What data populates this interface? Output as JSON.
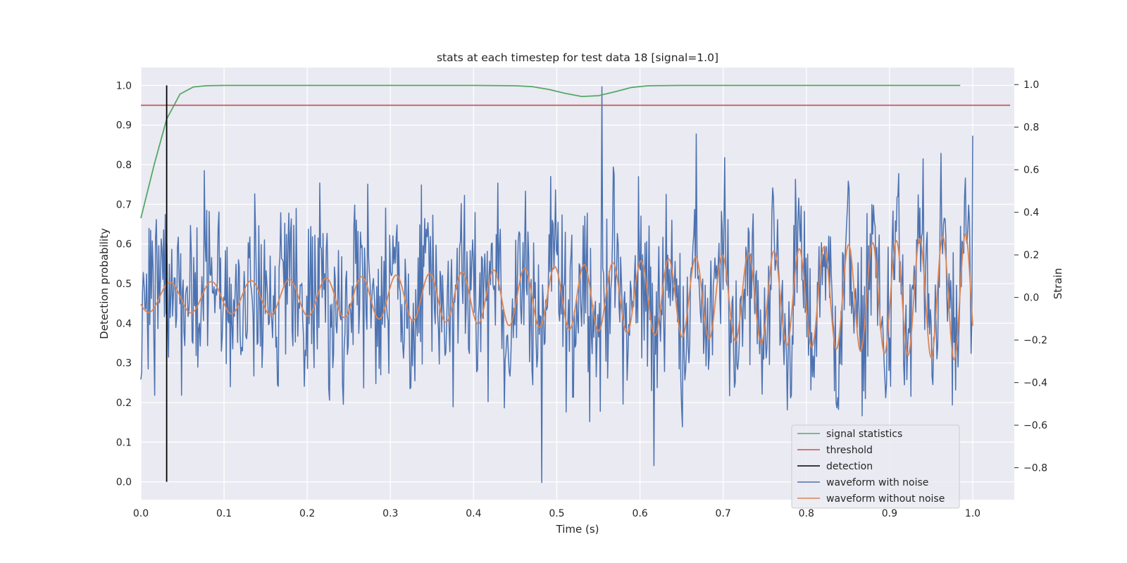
{
  "chart_data": {
    "type": "line",
    "title": "stats at each timestep for test data 18 [signal=1.0]",
    "xlabel": "Time (s)",
    "ylabel_left": "Detection probability",
    "ylabel_right": "Strain",
    "xlim": [
      0.0,
      1.05
    ],
    "ylim_left": [
      -0.045,
      1.045
    ],
    "ylim_right": [
      -0.95,
      1.08
    ],
    "x_ticks": [
      "0.0",
      "0.1",
      "0.2",
      "0.3",
      "0.4",
      "0.5",
      "0.6",
      "0.7",
      "0.8",
      "0.9",
      "1.0"
    ],
    "y_ticks_left": [
      "0.0",
      "0.1",
      "0.2",
      "0.3",
      "0.4",
      "0.5",
      "0.6",
      "0.7",
      "0.8",
      "0.9",
      "1.0"
    ],
    "y_ticks_right": [
      "−0.8",
      "−0.6",
      "−0.4",
      "−0.2",
      "0.0",
      "0.2",
      "0.4",
      "0.6",
      "0.8",
      "1.0"
    ],
    "grid": true,
    "legend_position": "lower-right",
    "legend": [
      "signal statistics",
      "threshold",
      "detection",
      "waveform with noise",
      "waveform without noise"
    ],
    "colors": {
      "signal_statistics": "#55a868",
      "threshold": "#c44e52",
      "detection": "#000000",
      "waveform_with_noise": "#4c72b0",
      "waveform_without_noise": "#dd8452",
      "plot_background": "#eaeaf2"
    },
    "signal_statistics": {
      "x": [
        0.0,
        0.016,
        0.031,
        0.047,
        0.063,
        0.078,
        0.1,
        0.2,
        0.3,
        0.4,
        0.45,
        0.47,
        0.49,
        0.51,
        0.53,
        0.55,
        0.57,
        0.59,
        0.61,
        0.65,
        0.8,
        0.985
      ],
      "y": [
        0.665,
        0.8,
        0.915,
        0.978,
        0.996,
        0.999,
        1.0,
        1.0,
        1.0,
        1.0,
        0.999,
        0.997,
        0.99,
        0.98,
        0.972,
        0.974,
        0.984,
        0.995,
        0.999,
        1.0,
        1.0,
        1.0
      ]
    },
    "threshold": {
      "x": [
        0.0,
        1.045
      ],
      "y": 0.95
    },
    "detection": {
      "x": 0.031,
      "y": [
        0.0,
        1.0
      ]
    },
    "waveform_without_noise": {
      "description_of_shape": "chirp-like sinusoid; amplitude grows from ~0.07 to ~0.3, frequency rises from ~19 to ~37 cycles per second",
      "amplitude_range": [
        0.07,
        0.3
      ],
      "frequency_range_hz": [
        19,
        37
      ]
    },
    "waveform_with_noise": {
      "description_of_shape": "dense noisy trace around the clean waveform, strain ranging about -0.88 to 0.99",
      "y_range": [
        -0.88,
        0.99
      ],
      "notable_peaks": [
        {
          "x": 0.554,
          "y": 0.99
        },
        {
          "x": 0.482,
          "y": -0.87
        },
        {
          "x": 0.617,
          "y": -0.79
        },
        {
          "x": 1.0,
          "y": 0.76
        }
      ]
    }
  }
}
